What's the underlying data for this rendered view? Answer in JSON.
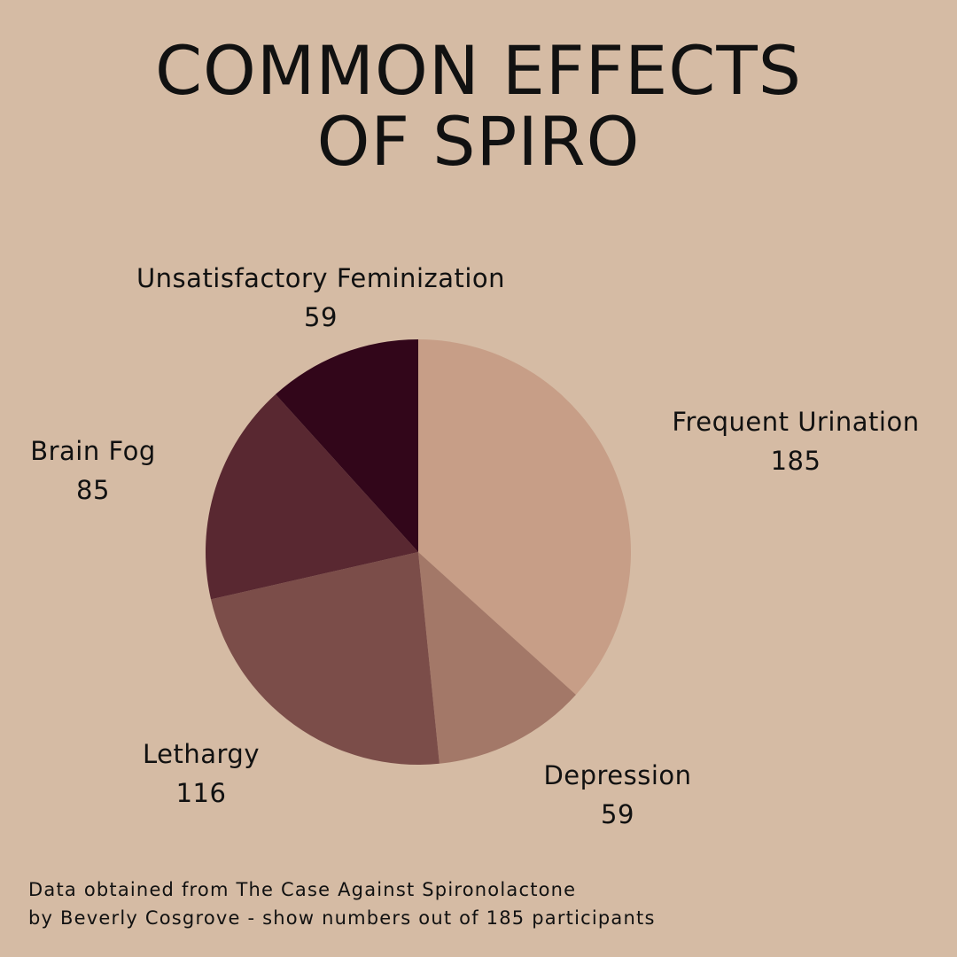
{
  "title_line1": "COMMON EFFECTS",
  "title_line2": "OF SPIRO",
  "chart_data": {
    "type": "pie",
    "slices": [
      {
        "label": "Frequent Urination",
        "value": 185,
        "color": "#c79e87"
      },
      {
        "label": "Depression",
        "value": 59,
        "color": "#a37868"
      },
      {
        "label": "Lethargy",
        "value": 116,
        "color": "#7b4d49"
      },
      {
        "label": "Brain Fog",
        "value": 85,
        "color": "#592831"
      },
      {
        "label": "Unsatisfactory Feminization",
        "value": 59,
        "color": "#32061a"
      }
    ]
  },
  "footnote_line1": "Data obtained from The Case Against Spironolactone",
  "footnote_line2": "by Beverly Cosgrove - show numbers out of 185 participants",
  "background_color": "#d5bba4"
}
